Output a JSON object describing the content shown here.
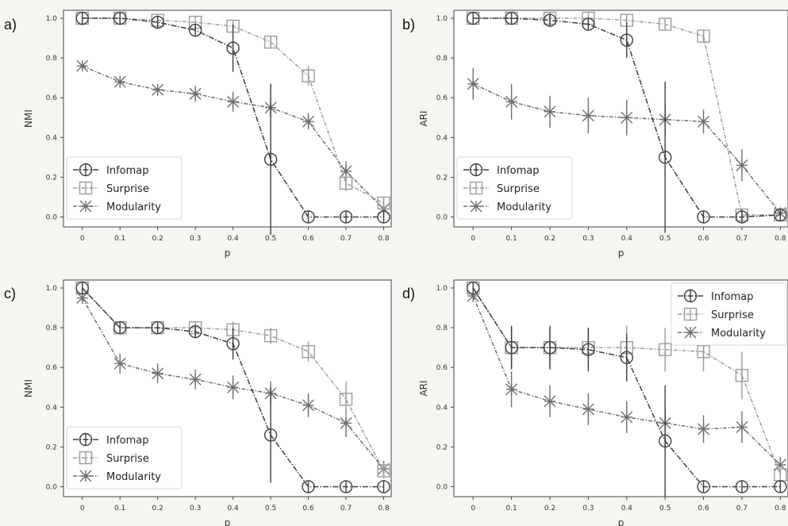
{
  "chart_data": [
    {
      "panel_label": "a)",
      "type": "line",
      "xlabel": "p",
      "ylabel": "NMI",
      "x": [
        0,
        0.1,
        0.2,
        0.3,
        0.4,
        0.5,
        0.6,
        0.7,
        0.8
      ],
      "x_tick_labels": [
        "0",
        "0.1",
        "0.2",
        "0.3",
        "0.4",
        "0.5",
        "0.6",
        "0.7",
        "0.8"
      ],
      "y_tick_labels": [
        "0.0",
        "0.2",
        "0.4",
        "0.6",
        "0.8",
        "1.0"
      ],
      "ylim": [
        -0.05,
        1.04
      ],
      "legend_position": "lower-left",
      "series": [
        {
          "name": "Infomap",
          "marker": "circle",
          "values": [
            1.0,
            1.0,
            0.98,
            0.94,
            0.85,
            0.29,
            0.0,
            0.0,
            0.0
          ],
          "errors": [
            0,
            0,
            0,
            0.02,
            0.12,
            0.38,
            0,
            0,
            0
          ]
        },
        {
          "name": "Surprise",
          "marker": "square",
          "values": [
            1.0,
            1.0,
            0.99,
            0.98,
            0.96,
            0.88,
            0.71,
            0.17,
            0.07
          ],
          "errors": [
            0,
            0,
            0,
            0,
            0.02,
            0.03,
            0.05,
            0.04,
            0.03
          ]
        },
        {
          "name": "Modularity",
          "marker": "star",
          "values": [
            0.76,
            0.68,
            0.64,
            0.62,
            0.58,
            0.55,
            0.48,
            0.23,
            0.04
          ],
          "errors": [
            0.02,
            0.03,
            0.03,
            0.04,
            0.05,
            0.05,
            0.04,
            0.05,
            0.02
          ]
        }
      ]
    },
    {
      "panel_label": "b)",
      "type": "line",
      "xlabel": "p",
      "ylabel": "ARI",
      "x": [
        0,
        0.1,
        0.2,
        0.3,
        0.4,
        0.5,
        0.6,
        0.7,
        0.8
      ],
      "x_tick_labels": [
        "0",
        "0.1",
        "0.2",
        "0.3",
        "0.4",
        "0.5",
        "0.6",
        "0.7",
        "0.8"
      ],
      "y_tick_labels": [
        "0.0",
        "0.2",
        "0.4",
        "0.6",
        "0.8",
        "1.0"
      ],
      "ylim": [
        -0.05,
        1.04
      ],
      "legend_position": "lower-left",
      "series": [
        {
          "name": "Infomap",
          "marker": "circle",
          "values": [
            1.0,
            1.0,
            0.99,
            0.97,
            0.89,
            0.3,
            0.0,
            0.0,
            0.01
          ],
          "errors": [
            0,
            0,
            0,
            0.02,
            0.09,
            0.38,
            0,
            0,
            0
          ]
        },
        {
          "name": "Surprise",
          "marker": "square",
          "values": [
            1.0,
            1.0,
            1.0,
            1.0,
            0.99,
            0.97,
            0.91,
            0.01,
            0.01
          ],
          "errors": [
            0,
            0,
            0,
            0,
            0.02,
            0.02,
            0.03,
            0.02,
            0.01
          ]
        },
        {
          "name": "Modularity",
          "marker": "star",
          "values": [
            0.67,
            0.58,
            0.53,
            0.51,
            0.5,
            0.49,
            0.48,
            0.26,
            0.02
          ],
          "errors": [
            0.08,
            0.09,
            0.08,
            0.09,
            0.09,
            0.08,
            0.06,
            0.08,
            0.02
          ]
        }
      ]
    },
    {
      "panel_label": "c)",
      "type": "line",
      "xlabel": "p",
      "ylabel": "NMI",
      "x": [
        0,
        0.1,
        0.2,
        0.3,
        0.4,
        0.5,
        0.6,
        0.7,
        0.8
      ],
      "x_tick_labels": [
        "0",
        "0.1",
        "0.2",
        "0.3",
        "0.4",
        "0.5",
        "0.6",
        "0.7",
        "0.8"
      ],
      "y_tick_labels": [
        "0.0",
        "0.2",
        "0.4",
        "0.6",
        "0.8",
        "1.0"
      ],
      "ylim": [
        -0.05,
        1.04
      ],
      "legend_position": "lower-left",
      "series": [
        {
          "name": "Infomap",
          "marker": "circle",
          "values": [
            1.0,
            0.8,
            0.8,
            0.78,
            0.72,
            0.26,
            0.0,
            0.0,
            0.0
          ],
          "errors": [
            0,
            0.02,
            0.02,
            0.03,
            0.08,
            0.24,
            0,
            0,
            0
          ]
        },
        {
          "name": "Surprise",
          "marker": "square",
          "values": [
            1.0,
            0.8,
            0.8,
            0.8,
            0.79,
            0.76,
            0.68,
            0.44,
            0.08
          ],
          "errors": [
            0,
            0.02,
            0.02,
            0.03,
            0.04,
            0.04,
            0.05,
            0.09,
            0.04
          ]
        },
        {
          "name": "Modularity",
          "marker": "star",
          "values": [
            0.95,
            0.62,
            0.57,
            0.54,
            0.5,
            0.47,
            0.41,
            0.32,
            0.09
          ],
          "errors": [
            0.03,
            0.05,
            0.05,
            0.05,
            0.06,
            0.06,
            0.06,
            0.07,
            0.04
          ]
        }
      ]
    },
    {
      "panel_label": "d)",
      "type": "line",
      "xlabel": "p",
      "ylabel": "ARI",
      "x": [
        0,
        0.1,
        0.2,
        0.3,
        0.4,
        0.5,
        0.6,
        0.7,
        0.8
      ],
      "x_tick_labels": [
        "0",
        "0.1",
        "0.2",
        "0.3",
        "0.4",
        "0.5",
        "0.6",
        "0.7",
        "0.8"
      ],
      "y_tick_labels": [
        "0.0",
        "0.2",
        "0.4",
        "0.6",
        "0.8",
        "1.0"
      ],
      "ylim": [
        -0.05,
        1.04
      ],
      "legend_position": "upper-right",
      "series": [
        {
          "name": "Infomap",
          "marker": "circle",
          "values": [
            1.0,
            0.7,
            0.7,
            0.69,
            0.65,
            0.23,
            0.0,
            0.0,
            0.0
          ],
          "errors": [
            0,
            0.11,
            0.11,
            0.11,
            0.12,
            0.28,
            0,
            0,
            0
          ]
        },
        {
          "name": "Surprise",
          "marker": "square",
          "values": [
            1.0,
            0.7,
            0.7,
            0.7,
            0.7,
            0.69,
            0.68,
            0.56,
            0.06
          ],
          "errors": [
            0,
            0.1,
            0.1,
            0.1,
            0.11,
            0.11,
            0.1,
            0.12,
            0.04
          ]
        },
        {
          "name": "Modularity",
          "marker": "star",
          "values": [
            0.96,
            0.49,
            0.43,
            0.39,
            0.35,
            0.32,
            0.29,
            0.3,
            0.11
          ],
          "errors": [
            0.03,
            0.09,
            0.08,
            0.08,
            0.08,
            0.08,
            0.07,
            0.08,
            0.04
          ]
        }
      ]
    }
  ]
}
